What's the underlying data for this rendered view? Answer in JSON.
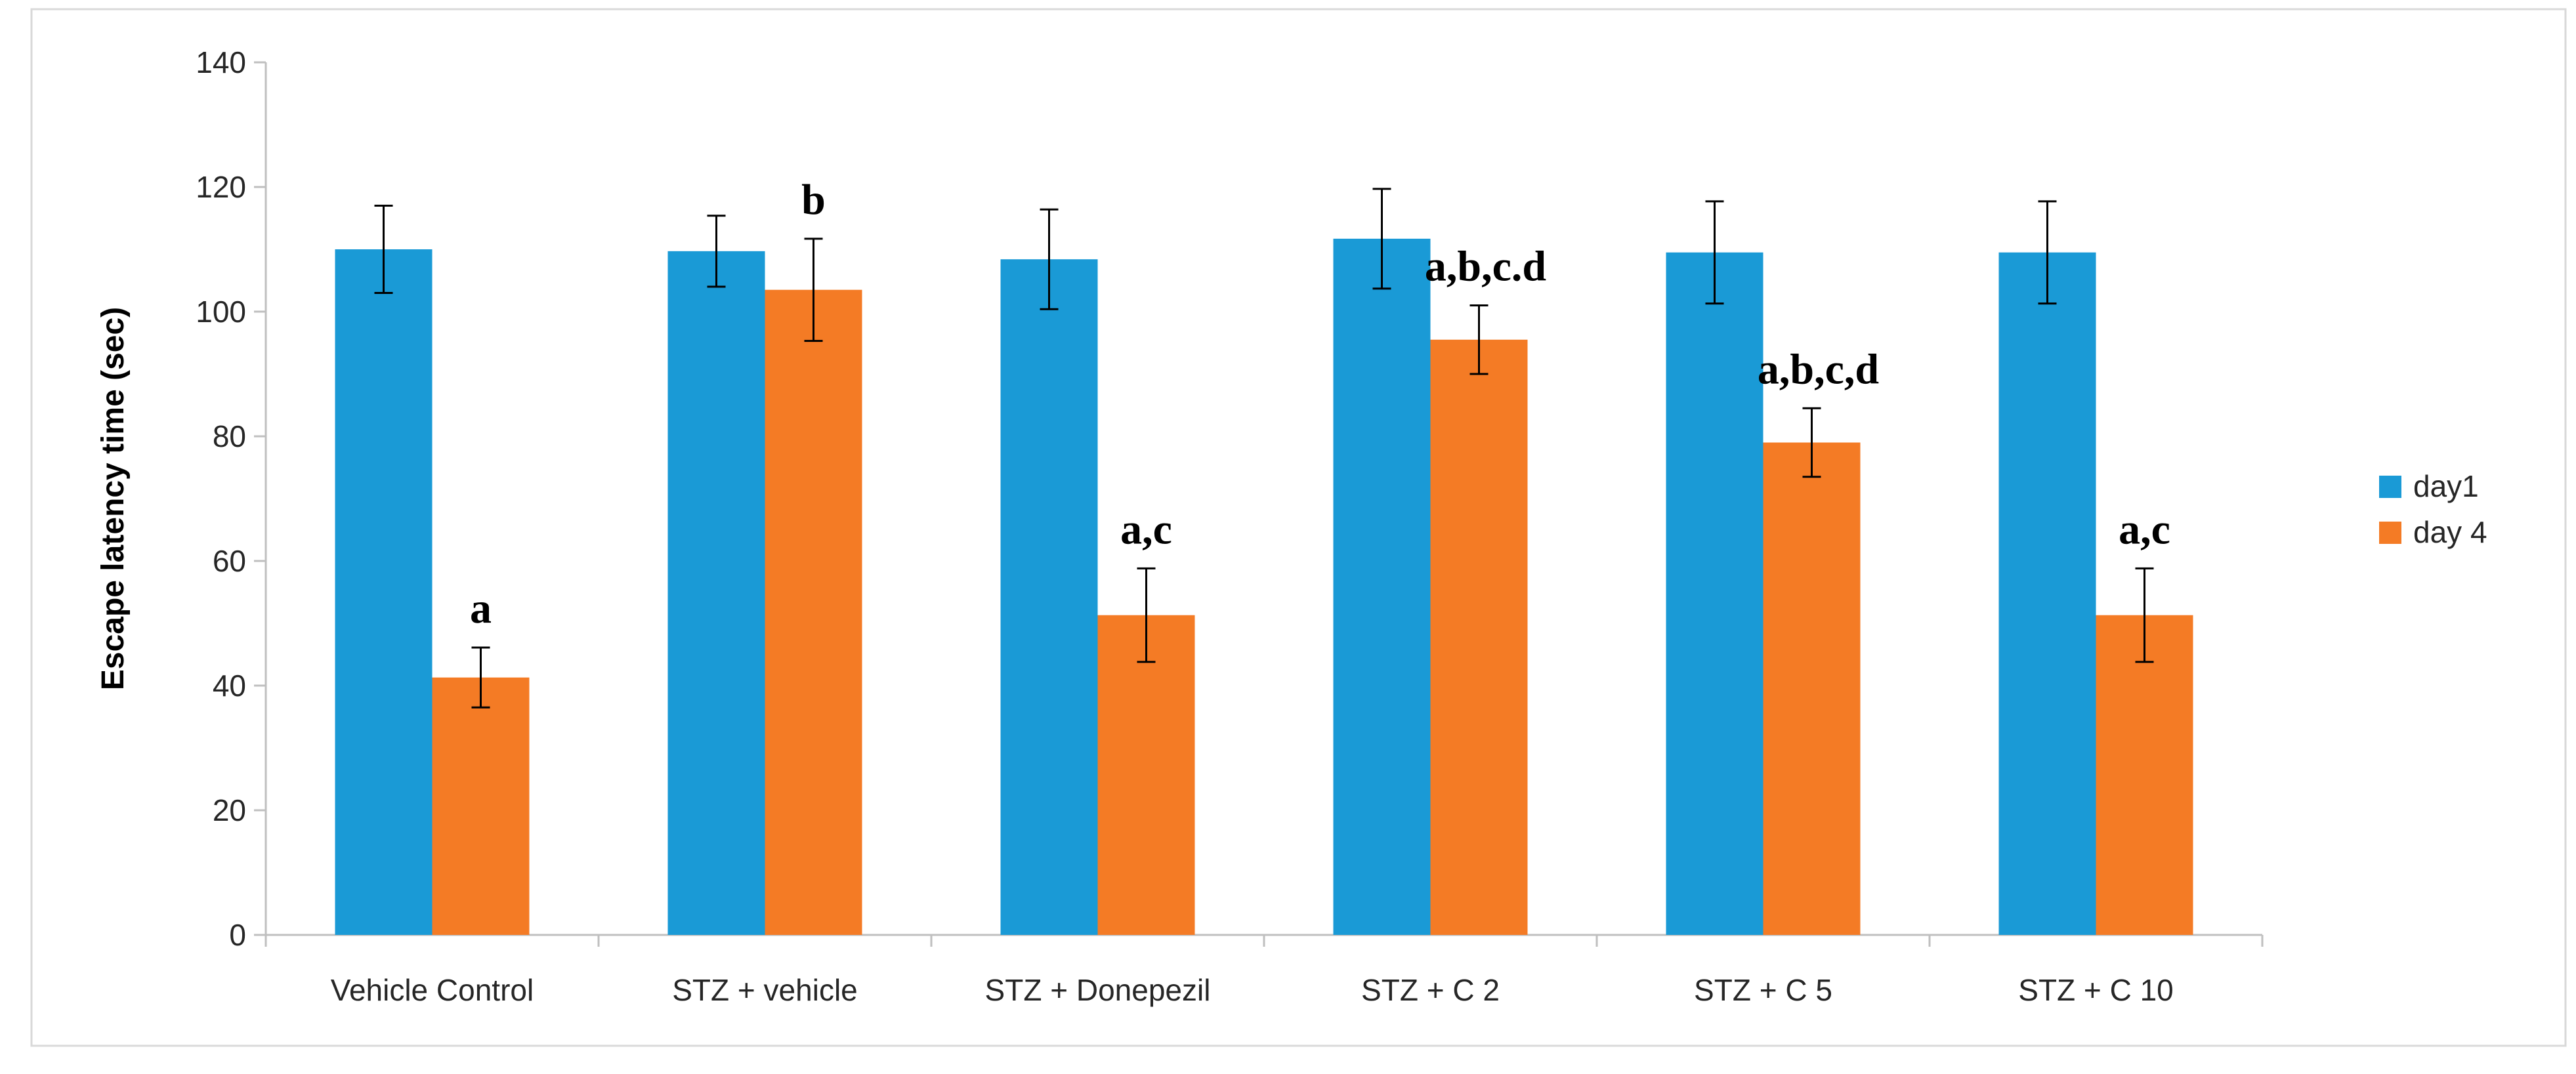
{
  "chart_data": {
    "type": "bar",
    "title": "",
    "xlabel": "",
    "ylabel": "Escape latency time (sec)",
    "ylim": [
      0,
      140
    ],
    "yticks": [
      0,
      20,
      40,
      60,
      80,
      100,
      120,
      140
    ],
    "grid": false,
    "legend_position": "right",
    "categories": [
      "Vehicle Control",
      "STZ + vehicle",
      "STZ + Donepezil",
      "STZ + C 2",
      "STZ + C 5",
      "STZ + C 10"
    ],
    "series": [
      {
        "name": "day1",
        "color": "#1a9ad6",
        "values": [
          110,
          109.7,
          108.4,
          111.7,
          109.5,
          109.5
        ],
        "errors": [
          7,
          5.7,
          8,
          8,
          8.2,
          8.2
        ]
      },
      {
        "name": "day 4",
        "color": "#f47b25",
        "values": [
          41.3,
          103.5,
          51.3,
          95.5,
          79,
          51.3
        ],
        "errors": [
          4.8,
          8.2,
          7.5,
          5.5,
          5.5,
          7.5
        ]
      }
    ],
    "annotations": [
      "a",
      "b",
      "a,c",
      "a,b,c.d",
      "a,b,c,d",
      "a,c"
    ]
  }
}
